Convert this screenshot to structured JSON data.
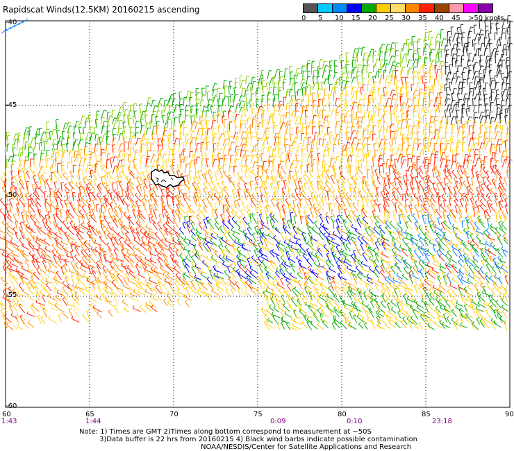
{
  "header": {
    "title": "Rapidscat Winds(12.5KM) 20160215 ascending"
  },
  "legend": {
    "colors": [
      "#808080",
      "#00ccff",
      "#0077ff",
      "#0000ff",
      "#00aa00",
      "#ffcc00",
      "#ffdd66",
      "#ff8800",
      "#ff2200",
      "#994400",
      "#ffaaaa",
      "#ff00ff",
      "#8800aa"
    ],
    "labels": [
      "0",
      "5",
      "10",
      "15",
      "20",
      "25",
      "30",
      "35",
      "40",
      "45",
      ">50 knots"
    ]
  },
  "axes": {
    "lat_labels": [
      "-40",
      "-45",
      "-50",
      "-55",
      "-60"
    ],
    "lon_labels": [
      "60",
      "65",
      "70",
      "75",
      "80",
      "85",
      "90"
    ],
    "times": [
      "1:43",
      "1:44",
      "0:09",
      "0:10",
      "23:18"
    ]
  },
  "notes": [
    "Note: 1) Times are GMT 2)Times along bottom correspond to measurement at ~50S",
    "3)Data buffer is 22 hrs from 20160215 4) Black wind barbs indicate possible contamination",
    "NOAA/NESDIS/Center for Satellite Applications and Research"
  ]
}
